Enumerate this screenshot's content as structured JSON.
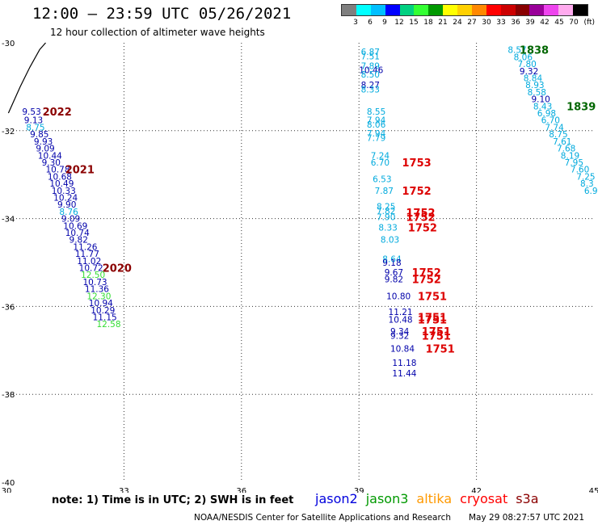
{
  "header": {
    "title": "12:00 — 23:59 UTC 05/26/2021",
    "subtitle": "12 hour collection of altimeter wave heights"
  },
  "legend": {
    "unit": "(ft)",
    "ticks": [
      "3",
      "6",
      "9",
      "12",
      "15",
      "18",
      "21",
      "24",
      "27",
      "30",
      "33",
      "36",
      "39",
      "42",
      "45",
      "70"
    ],
    "colors": [
      "#7f7f7f",
      "#00ffff",
      "#00bfff",
      "#0000ff",
      "#00d080",
      "#33ff33",
      "#009900",
      "#ffff00",
      "#ffd000",
      "#ff8800",
      "#ff0000",
      "#cc0000",
      "#880000",
      "#990099",
      "#ee44ee",
      "#ffaaee",
      "#000000"
    ]
  },
  "footer": {
    "note": "note: 1) Time is in UTC; 2) SWH is in feet",
    "satellites": [
      {
        "name": "jason2",
        "color": "#0000dd"
      },
      {
        "name": "jason3",
        "color": "#009900"
      },
      {
        "name": "altika",
        "color": "#ff9900"
      },
      {
        "name": "cryosat",
        "color": "#ff0000"
      },
      {
        "name": "s3a",
        "color": "#8b0000"
      }
    ],
    "credit": "NOAA/NESDIS Center for Satellite Applications and Research",
    "timestamp": "May 29 08:27:57 UTC 2021"
  },
  "chart_data": {
    "type": "scatter",
    "xlim": [
      30,
      45
    ],
    "ylim": [
      -40,
      -30
    ],
    "xticks": [
      "30",
      "33",
      "36",
      "39",
      "42",
      "45"
    ],
    "yticks": [
      "-30",
      "-32",
      "-34",
      "-36",
      "-38",
      "-40"
    ],
    "grid": true,
    "points": [
      {
        "x": 30.4,
        "y": -31.56,
        "v": "9.53",
        "c": "#0000aa"
      },
      {
        "x": 30.45,
        "y": -31.76,
        "v": "9.13",
        "c": "#0000aa"
      },
      {
        "x": 30.5,
        "y": -31.92,
        "v": "8.75",
        "c": "#00aadd"
      },
      {
        "x": 30.6,
        "y": -32.08,
        "v": "9.85",
        "c": "#0000aa"
      },
      {
        "x": 30.7,
        "y": -32.24,
        "v": "9.93",
        "c": "#0000aa"
      },
      {
        "x": 30.75,
        "y": -32.4,
        "v": "9.09",
        "c": "#0000aa"
      },
      {
        "x": 30.8,
        "y": -32.56,
        "v": "10.44",
        "c": "#0000aa"
      },
      {
        "x": 30.9,
        "y": -32.72,
        "v": "9.30",
        "c": "#0000aa"
      },
      {
        "x": 31.0,
        "y": -32.88,
        "v": "10.78",
        "c": "#0000aa"
      },
      {
        "x": 31.05,
        "y": -33.04,
        "v": "10.68",
        "c": "#0000aa"
      },
      {
        "x": 31.1,
        "y": -33.2,
        "v": "10.49",
        "c": "#0000aa"
      },
      {
        "x": 31.15,
        "y": -33.36,
        "v": "10.33",
        "c": "#0000aa"
      },
      {
        "x": 31.2,
        "y": -33.52,
        "v": "10.24",
        "c": "#0000aa"
      },
      {
        "x": 31.3,
        "y": -33.68,
        "v": "9.90",
        "c": "#0000aa"
      },
      {
        "x": 31.35,
        "y": -33.84,
        "v": "8.76",
        "c": "#00aadd"
      },
      {
        "x": 31.4,
        "y": -34.0,
        "v": "9.09",
        "c": "#0000aa"
      },
      {
        "x": 31.45,
        "y": -34.16,
        "v": "10.69",
        "c": "#0000aa"
      },
      {
        "x": 31.5,
        "y": -34.32,
        "v": "10.74",
        "c": "#0000aa"
      },
      {
        "x": 31.6,
        "y": -34.48,
        "v": "9.82",
        "c": "#0000aa"
      },
      {
        "x": 31.7,
        "y": -34.64,
        "v": "11.26",
        "c": "#0000aa"
      },
      {
        "x": 31.75,
        "y": -34.8,
        "v": "11.77",
        "c": "#0000aa"
      },
      {
        "x": 31.8,
        "y": -34.96,
        "v": "11.02",
        "c": "#0000aa"
      },
      {
        "x": 31.85,
        "y": -35.12,
        "v": "10.72",
        "c": "#0000aa"
      },
      {
        "x": 31.9,
        "y": -35.28,
        "v": "12.50",
        "c": "#33dd33"
      },
      {
        "x": 31.95,
        "y": -35.44,
        "v": "10.73",
        "c": "#0000aa"
      },
      {
        "x": 32.0,
        "y": -35.6,
        "v": "11.36",
        "c": "#0000aa"
      },
      {
        "x": 32.05,
        "y": -35.76,
        "v": "12.30",
        "c": "#33dd33"
      },
      {
        "x": 32.1,
        "y": -35.92,
        "v": "10.94",
        "c": "#0000aa"
      },
      {
        "x": 32.15,
        "y": -36.08,
        "v": "10.29",
        "c": "#0000aa"
      },
      {
        "x": 32.2,
        "y": -36.24,
        "v": "11.15",
        "c": "#0000aa"
      },
      {
        "x": 32.3,
        "y": -36.4,
        "v": "12.58",
        "c": "#33dd33"
      },
      {
        "x": 39.05,
        "y": -30.2,
        "v": "6.87",
        "c": "#00aadd"
      },
      {
        "x": 39.05,
        "y": -30.3,
        "v": "7.51",
        "c": "#00aadd"
      },
      {
        "x": 39.05,
        "y": -30.52,
        "v": "7.89",
        "c": "#00aadd"
      },
      {
        "x": 39.0,
        "y": -30.62,
        "v": "10.46",
        "c": "#0000aa"
      },
      {
        "x": 39.05,
        "y": -30.72,
        "v": "8.50",
        "c": "#00aadd"
      },
      {
        "x": 39.05,
        "y": -30.96,
        "v": "8.27",
        "c": "#0000aa"
      },
      {
        "x": 39.05,
        "y": -31.06,
        "v": "8.33",
        "c": "#00aadd"
      },
      {
        "x": 39.2,
        "y": -31.56,
        "v": "8.55",
        "c": "#00aadd"
      },
      {
        "x": 39.2,
        "y": -31.76,
        "v": "7.94",
        "c": "#00aadd"
      },
      {
        "x": 39.2,
        "y": -31.86,
        "v": "8.06",
        "c": "#00aadd"
      },
      {
        "x": 39.2,
        "y": -32.06,
        "v": "7.94",
        "c": "#00aadd"
      },
      {
        "x": 39.2,
        "y": -32.16,
        "v": "7.79",
        "c": "#00aadd"
      },
      {
        "x": 39.3,
        "y": -32.56,
        "v": "7.24",
        "c": "#00aadd"
      },
      {
        "x": 39.3,
        "y": -32.72,
        "v": "6.70",
        "c": "#00aadd"
      },
      {
        "x": 39.35,
        "y": -33.1,
        "v": "6.53",
        "c": "#00aadd"
      },
      {
        "x": 39.4,
        "y": -33.36,
        "v": "7.87",
        "c": "#00aadd"
      },
      {
        "x": 39.45,
        "y": -33.72,
        "v": "8.25",
        "c": "#00aadd"
      },
      {
        "x": 39.45,
        "y": -33.82,
        "v": "7.82",
        "c": "#00aadd"
      },
      {
        "x": 39.45,
        "y": -33.96,
        "v": "7.90",
        "c": "#00aadd"
      },
      {
        "x": 39.5,
        "y": -34.2,
        "v": "8.33",
        "c": "#00aadd"
      },
      {
        "x": 39.55,
        "y": -34.48,
        "v": "8.03",
        "c": "#00aadd"
      },
      {
        "x": 39.6,
        "y": -34.92,
        "v": "8.64",
        "c": "#00aadd"
      },
      {
        "x": 39.6,
        "y": -35.0,
        "v": "9.18",
        "c": "#0000aa"
      },
      {
        "x": 39.65,
        "y": -35.22,
        "v": "9.67",
        "c": "#0000aa"
      },
      {
        "x": 39.65,
        "y": -35.38,
        "v": "9.82",
        "c": "#0000aa"
      },
      {
        "x": 39.7,
        "y": -35.76,
        "v": "10.80",
        "c": "#0000aa"
      },
      {
        "x": 39.75,
        "y": -36.12,
        "v": "11.21",
        "c": "#0000aa"
      },
      {
        "x": 39.75,
        "y": -36.3,
        "v": "10.48",
        "c": "#0000aa"
      },
      {
        "x": 39.8,
        "y": -36.56,
        "v": "9.34",
        "c": "#0000aa"
      },
      {
        "x": 39.8,
        "y": -36.66,
        "v": "9.32",
        "c": "#0000aa"
      },
      {
        "x": 39.8,
        "y": -36.96,
        "v": "10.84",
        "c": "#0000aa"
      },
      {
        "x": 39.85,
        "y": -37.28,
        "v": "11.18",
        "c": "#0000aa"
      },
      {
        "x": 39.85,
        "y": -37.52,
        "v": "11.44",
        "c": "#0000aa"
      },
      {
        "x": 42.8,
        "y": -30.16,
        "v": "8.57",
        "c": "#00aadd"
      },
      {
        "x": 42.95,
        "y": -30.32,
        "v": "8.06",
        "c": "#00aadd"
      },
      {
        "x": 43.05,
        "y": -30.48,
        "v": "7.80",
        "c": "#00aadd"
      },
      {
        "x": 43.1,
        "y": -30.64,
        "v": "9.32",
        "c": "#0000aa"
      },
      {
        "x": 43.2,
        "y": -30.8,
        "v": "8.84",
        "c": "#00aadd"
      },
      {
        "x": 43.25,
        "y": -30.96,
        "v": "8.93",
        "c": "#00aadd"
      },
      {
        "x": 43.3,
        "y": -31.12,
        "v": "8.58",
        "c": "#00aadd"
      },
      {
        "x": 43.4,
        "y": -31.28,
        "v": "9.10",
        "c": "#0000aa"
      },
      {
        "x": 43.45,
        "y": -31.44,
        "v": "8.43",
        "c": "#00aadd"
      },
      {
        "x": 43.55,
        "y": -31.6,
        "v": "6.98",
        "c": "#00aadd"
      },
      {
        "x": 43.65,
        "y": -31.76,
        "v": "6.70",
        "c": "#00aadd"
      },
      {
        "x": 43.75,
        "y": -31.92,
        "v": "7.74",
        "c": "#00aadd"
      },
      {
        "x": 43.85,
        "y": -32.08,
        "v": "8.75",
        "c": "#00aadd"
      },
      {
        "x": 43.95,
        "y": -32.24,
        "v": "7.61",
        "c": "#00aadd"
      },
      {
        "x": 44.05,
        "y": -32.4,
        "v": "7.68",
        "c": "#00aadd"
      },
      {
        "x": 44.15,
        "y": -32.56,
        "v": "8.19",
        "c": "#00aadd"
      },
      {
        "x": 44.25,
        "y": -32.72,
        "v": "7.95",
        "c": "#00aadd"
      },
      {
        "x": 44.4,
        "y": -32.88,
        "v": "7.60",
        "c": "#00aadd"
      },
      {
        "x": 44.55,
        "y": -33.04,
        "v": "7.25",
        "c": "#00aadd"
      },
      {
        "x": 44.65,
        "y": -33.2,
        "v": "8.3",
        "c": "#00aadd"
      },
      {
        "x": 44.75,
        "y": -33.36,
        "v": "6.9",
        "c": "#00aadd"
      }
    ],
    "annotations": [
      {
        "x": 30.92,
        "y": -31.56,
        "text": "2022",
        "c": "#8b0000"
      },
      {
        "x": 31.5,
        "y": -32.88,
        "text": "2021",
        "c": "#8b0000"
      },
      {
        "x": 32.45,
        "y": -35.12,
        "text": "2020",
        "c": "#8b0000"
      },
      {
        "x": 40.1,
        "y": -32.72,
        "text": "1753",
        "c": "#dd0000"
      },
      {
        "x": 40.1,
        "y": -33.36,
        "text": "1752",
        "c": "#dd0000"
      },
      {
        "x": 40.2,
        "y": -33.86,
        "text": "1752",
        "c": "#dd0000"
      },
      {
        "x": 40.2,
        "y": -33.96,
        "text": "1752",
        "c": "#dd0000"
      },
      {
        "x": 40.25,
        "y": -34.2,
        "text": "1752",
        "c": "#dd0000"
      },
      {
        "x": 40.35,
        "y": -35.22,
        "text": "1752",
        "c": "#dd0000"
      },
      {
        "x": 40.35,
        "y": -35.38,
        "text": "1752",
        "c": "#dd0000"
      },
      {
        "x": 40.5,
        "y": -35.76,
        "text": "1751",
        "c": "#dd0000"
      },
      {
        "x": 40.5,
        "y": -36.24,
        "text": "1751",
        "c": "#dd0000"
      },
      {
        "x": 40.5,
        "y": -36.3,
        "text": "1751",
        "c": "#dd0000"
      },
      {
        "x": 40.6,
        "y": -36.56,
        "text": "1751",
        "c": "#dd0000"
      },
      {
        "x": 40.6,
        "y": -36.66,
        "text": "1751",
        "c": "#dd0000"
      },
      {
        "x": 40.7,
        "y": -36.96,
        "text": "1751",
        "c": "#dd0000"
      },
      {
        "x": 43.1,
        "y": -30.16,
        "text": "1838",
        "c": "#006600"
      },
      {
        "x": 44.3,
        "y": -31.44,
        "text": "1839",
        "c": "#006600"
      }
    ],
    "coast": [
      [
        30.05,
        -31.6
      ],
      [
        30.35,
        -31.0
      ],
      [
        30.6,
        -30.55
      ],
      [
        30.85,
        -30.15
      ],
      [
        31.0,
        -30.0
      ]
    ]
  }
}
